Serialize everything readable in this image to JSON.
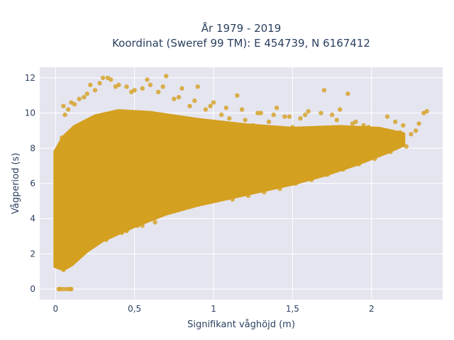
{
  "chart_data": {
    "type": "scatter",
    "title": "År 1979 - 2019",
    "subtitle": "Koordinat (Sweref 99 TM): E 454739, N 6167412",
    "xlabel": "Signifikant våghöjd (m)",
    "ylabel": "Vågperiod (s)",
    "xlim": [
      -0.1,
      2.45
    ],
    "ylim": [
      -0.6,
      12.6
    ],
    "x_ticks": [
      0,
      0.5,
      1,
      1.5,
      2
    ],
    "x_tick_labels": [
      "0",
      "0,5",
      "1",
      "1,5",
      "2"
    ],
    "y_ticks": [
      0,
      2,
      4,
      6,
      8,
      10,
      12
    ],
    "y_tick_labels": [
      "0",
      "2",
      "4",
      "6",
      "8",
      "10",
      "12"
    ],
    "grid": true,
    "marker_color": "#d4a020",
    "background_color": "#e5e5f0",
    "points": [
      [
        0.02,
        0
      ],
      [
        0.03,
        0
      ],
      [
        0.05,
        0
      ],
      [
        0.07,
        0
      ],
      [
        0.09,
        0
      ],
      [
        0.1,
        0
      ],
      [
        0.01,
        1.8
      ],
      [
        0.01,
        2.2
      ],
      [
        0.02,
        1.5
      ],
      [
        0.02,
        2.6
      ],
      [
        0.03,
        1.3
      ],
      [
        0.04,
        1.2
      ],
      [
        0.05,
        1.1
      ],
      [
        0.06,
        1.2
      ],
      [
        0.08,
        1.3
      ],
      [
        0.1,
        1.4
      ],
      [
        0.12,
        1.6
      ],
      [
        0.15,
        1.9
      ],
      [
        0.2,
        2.3
      ],
      [
        0.25,
        2.6
      ],
      [
        0.3,
        2.9
      ],
      [
        0.4,
        3.3
      ],
      [
        0.5,
        3.7
      ],
      [
        0.6,
        4.0
      ],
      [
        0.7,
        4.4
      ],
      [
        0.8,
        4.6
      ],
      [
        0.9,
        4.8
      ],
      [
        1.0,
        5.0
      ],
      [
        1.1,
        5.2
      ],
      [
        1.2,
        5.4
      ],
      [
        1.3,
        5.6
      ],
      [
        1.4,
        5.8
      ],
      [
        1.5,
        6.0
      ],
      [
        1.6,
        6.3
      ],
      [
        1.7,
        6.6
      ],
      [
        1.8,
        6.9
      ],
      [
        1.9,
        7.2
      ],
      [
        2.0,
        7.5
      ],
      [
        2.1,
        7.9
      ],
      [
        2.2,
        8.2
      ],
      [
        2.25,
        8.8
      ],
      [
        2.3,
        9.4
      ],
      [
        2.33,
        10.0
      ],
      [
        2.35,
        10.1
      ],
      [
        2.28,
        9.0
      ],
      [
        2.2,
        9.3
      ],
      [
        2.15,
        9.5
      ],
      [
        2.1,
        9.8
      ],
      [
        2.0,
        8.8
      ],
      [
        1.95,
        9.3
      ],
      [
        1.9,
        9.5
      ],
      [
        1.85,
        11.1
      ],
      [
        1.8,
        10.2
      ],
      [
        1.75,
        9.9
      ],
      [
        1.7,
        11.3
      ],
      [
        1.6,
        10.1
      ],
      [
        1.55,
        9.7
      ],
      [
        1.5,
        9.2
      ],
      [
        1.45,
        9.8
      ],
      [
        1.4,
        10.3
      ],
      [
        1.35,
        9.5
      ],
      [
        1.3,
        10.0
      ],
      [
        1.25,
        9.3
      ],
      [
        1.2,
        9.6
      ],
      [
        1.15,
        11.0
      ],
      [
        1.1,
        9.7
      ],
      [
        1.05,
        9.9
      ],
      [
        1.0,
        10.6
      ],
      [
        0.95,
        10.2
      ],
      [
        0.9,
        11.5
      ],
      [
        0.85,
        10.4
      ],
      [
        0.8,
        11.4
      ],
      [
        0.75,
        10.8
      ],
      [
        0.7,
        12.1
      ],
      [
        0.65,
        11.2
      ],
      [
        0.6,
        11.6
      ],
      [
        0.55,
        11.4
      ],
      [
        0.5,
        11.3
      ],
      [
        0.45,
        11.5
      ],
      [
        0.4,
        11.6
      ],
      [
        0.35,
        11.9
      ],
      [
        0.3,
        12.0
      ],
      [
        0.25,
        11.3
      ],
      [
        0.2,
        11.1
      ],
      [
        0.15,
        10.8
      ],
      [
        0.1,
        10.6
      ],
      [
        0.08,
        10.2
      ],
      [
        0.05,
        10.4
      ],
      [
        0.04,
        8.6
      ],
      [
        0.03,
        7.5
      ],
      [
        0.02,
        6.4
      ],
      [
        0.02,
        4.8
      ],
      [
        0.03,
        3.8
      ],
      [
        0.01,
        3.2
      ],
      [
        0.06,
        9.9
      ],
      [
        0.12,
        10.5
      ],
      [
        0.18,
        10.9
      ],
      [
        0.22,
        11.6
      ],
      [
        0.28,
        11.7
      ],
      [
        0.33,
        12.0
      ],
      [
        0.38,
        11.5
      ],
      [
        0.48,
        11.2
      ],
      [
        0.58,
        11.9
      ],
      [
        0.68,
        11.5
      ],
      [
        0.78,
        10.9
      ],
      [
        0.88,
        10.7
      ],
      [
        0.98,
        10.4
      ],
      [
        1.08,
        10.3
      ],
      [
        1.18,
        10.2
      ],
      [
        1.28,
        10.0
      ],
      [
        1.38,
        9.9
      ],
      [
        1.48,
        9.8
      ],
      [
        1.58,
        9.9
      ],
      [
        1.68,
        10.0
      ],
      [
        1.78,
        9.6
      ],
      [
        1.88,
        9.4
      ],
      [
        1.98,
        9.2
      ],
      [
        2.08,
        9.0
      ],
      [
        2.18,
        8.9
      ],
      [
        0.63,
        3.8
      ],
      [
        0.55,
        3.6
      ],
      [
        0.45,
        3.3
      ],
      [
        0.35,
        3.0
      ],
      [
        0.28,
        2.7
      ],
      [
        0.22,
        2.4
      ],
      [
        0.17,
        2.1
      ],
      [
        0.13,
        1.7
      ],
      [
        0.11,
        1.5
      ],
      [
        0.07,
        1.3
      ],
      [
        1.12,
        5.1
      ],
      [
        1.22,
        5.3
      ],
      [
        1.32,
        5.5
      ],
      [
        1.42,
        5.7
      ],
      [
        1.52,
        6.0
      ],
      [
        1.62,
        6.2
      ],
      [
        1.72,
        6.5
      ],
      [
        1.82,
        6.8
      ],
      [
        1.92,
        7.1
      ],
      [
        2.02,
        7.4
      ],
      [
        2.12,
        7.8
      ],
      [
        2.22,
        8.1
      ],
      [
        0.95,
        4.9
      ],
      [
        0.85,
        4.7
      ],
      [
        0.75,
        4.5
      ],
      [
        0.65,
        4.2
      ],
      [
        0.52,
        3.6
      ],
      [
        0.42,
        3.2
      ],
      [
        0.32,
        2.8
      ],
      [
        0.24,
        2.5
      ],
      [
        0.09,
        1.4
      ]
    ]
  }
}
